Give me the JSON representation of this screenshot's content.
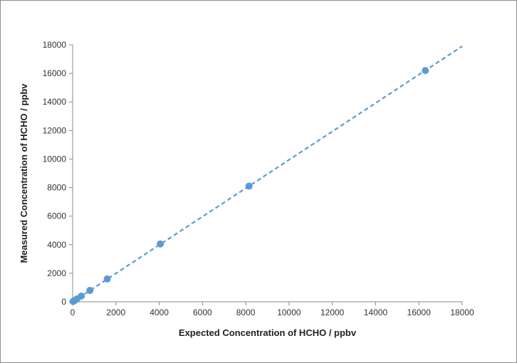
{
  "chart_data": {
    "type": "scatter",
    "title": "",
    "xlabel": "Expected Concentration of HCHO / ppbv",
    "ylabel": "Measured Concentration of HCHO / ppbv",
    "xlim": [
      0,
      18000
    ],
    "ylim": [
      0,
      18000
    ],
    "xticks": [
      0,
      2000,
      4000,
      6000,
      8000,
      10000,
      12000,
      14000,
      16000,
      18000
    ],
    "yticks": [
      0,
      2000,
      4000,
      6000,
      8000,
      10000,
      12000,
      14000,
      16000,
      18000
    ],
    "grid": false,
    "legend": "none",
    "series": [
      {
        "marker_color": "#5b9bd5",
        "points": [
          {
            "x": 20,
            "y": 20
          },
          {
            "x": 50,
            "y": 50
          },
          {
            "x": 100,
            "y": 100
          },
          {
            "x": 200,
            "y": 200
          },
          {
            "x": 400,
            "y": 400
          },
          {
            "x": 800,
            "y": 800
          },
          {
            "x": 1600,
            "y": 1600
          },
          {
            "x": 4050,
            "y": 4050
          },
          {
            "x": 8150,
            "y": 8100
          },
          {
            "x": 16300,
            "y": 16200
          }
        ]
      }
    ],
    "trendline": {
      "style": "dashed",
      "color": "#5b9bd5",
      "from": {
        "x": 0,
        "y": 0
      },
      "to": {
        "x": 18000,
        "y": 17900
      }
    }
  }
}
